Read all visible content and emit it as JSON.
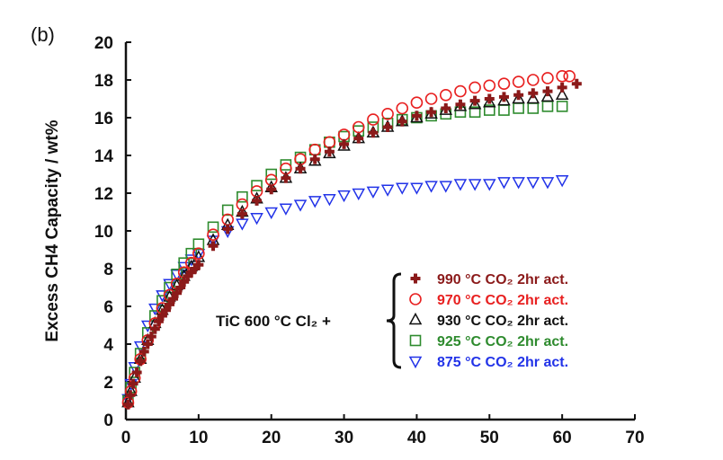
{
  "panel_label": "(b)",
  "chart_data": {
    "type": "scatter",
    "title": "",
    "xlabel": "",
    "ylabel": "Excess CH4 Capacity / wt%",
    "xlim": [
      0,
      70
    ],
    "ylim": [
      0,
      20
    ],
    "xticks": [
      "0",
      "10",
      "20",
      "30",
      "40",
      "50",
      "60",
      "70"
    ],
    "yticks": [
      "0",
      "2",
      "4",
      "6",
      "8",
      "10",
      "12",
      "14",
      "16",
      "18",
      "20"
    ],
    "grid": false,
    "legend_placement": "right",
    "legend_prefix": "TiC 600 °C Cl₂ +",
    "series": [
      {
        "name": "990 °C CO₂ 2hr act.",
        "marker": "cross",
        "color": "#8B1A1A",
        "points": [
          [
            0.3,
            0.8
          ],
          [
            0.6,
            1.3
          ],
          [
            1,
            1.9
          ],
          [
            1.5,
            2.5
          ],
          [
            2,
            3.1
          ],
          [
            2.5,
            3.6
          ],
          [
            3,
            4
          ],
          [
            3.5,
            4.4
          ],
          [
            4,
            4.8
          ],
          [
            4.5,
            5.2
          ],
          [
            5,
            5.5
          ],
          [
            5.5,
            5.8
          ],
          [
            6,
            6.1
          ],
          [
            6.5,
            6.4
          ],
          [
            7,
            6.7
          ],
          [
            7.5,
            7
          ],
          [
            8,
            7.3
          ],
          [
            8.5,
            7.6
          ],
          [
            9,
            7.8
          ],
          [
            9.5,
            8
          ],
          [
            10,
            8.2
          ],
          [
            12,
            9.2
          ],
          [
            14,
            10.1
          ],
          [
            16,
            10.9
          ],
          [
            18,
            11.6
          ],
          [
            20,
            12.2
          ],
          [
            22,
            12.8
          ],
          [
            24,
            13.3
          ],
          [
            26,
            13.8
          ],
          [
            28,
            14.2
          ],
          [
            30,
            14.6
          ],
          [
            32,
            14.9
          ],
          [
            34,
            15.2
          ],
          [
            36,
            15.5
          ],
          [
            38,
            15.8
          ],
          [
            40,
            16.1
          ],
          [
            42,
            16.3
          ],
          [
            44,
            16.5
          ],
          [
            46,
            16.7
          ],
          [
            48,
            16.9
          ],
          [
            50,
            17
          ],
          [
            52,
            17.1
          ],
          [
            54,
            17.2
          ],
          [
            56,
            17.3
          ],
          [
            58,
            17.4
          ],
          [
            60,
            17.6
          ],
          [
            62,
            17.8
          ]
        ]
      },
      {
        "name": "970 °C CO₂ 2hr act.",
        "marker": "circle",
        "color": "#E82020",
        "points": [
          [
            0.3,
            0.9
          ],
          [
            0.7,
            1.5
          ],
          [
            1.2,
            2.2
          ],
          [
            2,
            3.2
          ],
          [
            3,
            4.2
          ],
          [
            4,
            5.1
          ],
          [
            5,
            5.9
          ],
          [
            6,
            6.6
          ],
          [
            7,
            7.2
          ],
          [
            8,
            7.8
          ],
          [
            9,
            8.3
          ],
          [
            10,
            8.8
          ],
          [
            12,
            9.8
          ],
          [
            14,
            10.6
          ],
          [
            16,
            11.4
          ],
          [
            18,
            12.1
          ],
          [
            20,
            12.7
          ],
          [
            22,
            13.3
          ],
          [
            24,
            13.8
          ],
          [
            26,
            14.3
          ],
          [
            28,
            14.7
          ],
          [
            30,
            15.1
          ],
          [
            32,
            15.5
          ],
          [
            34,
            15.9
          ],
          [
            36,
            16.2
          ],
          [
            38,
            16.5
          ],
          [
            40,
            16.8
          ],
          [
            42,
            17
          ],
          [
            44,
            17.2
          ],
          [
            46,
            17.4
          ],
          [
            48,
            17.6
          ],
          [
            50,
            17.7
          ],
          [
            52,
            17.8
          ],
          [
            54,
            17.9
          ],
          [
            56,
            18
          ],
          [
            58,
            18.1
          ],
          [
            60,
            18.2
          ],
          [
            61,
            18.2
          ]
        ]
      },
      {
        "name": "930 °C CO₂ 2hr act.",
        "marker": "triangle-up",
        "color": "#111111",
        "points": [
          [
            0.3,
            0.9
          ],
          [
            0.7,
            1.5
          ],
          [
            1.2,
            2.2
          ],
          [
            2,
            3.2
          ],
          [
            3,
            4.2
          ],
          [
            4,
            5.1
          ],
          [
            5,
            5.8
          ],
          [
            6,
            6.5
          ],
          [
            7,
            7.1
          ],
          [
            8,
            7.6
          ],
          [
            9,
            8.1
          ],
          [
            10,
            8.6
          ],
          [
            12,
            9.5
          ],
          [
            14,
            10.3
          ],
          [
            16,
            11
          ],
          [
            18,
            11.7
          ],
          [
            20,
            12.3
          ],
          [
            22,
            12.8
          ],
          [
            24,
            13.3
          ],
          [
            26,
            13.7
          ],
          [
            28,
            14.1
          ],
          [
            30,
            14.5
          ],
          [
            32,
            14.9
          ],
          [
            34,
            15.2
          ],
          [
            36,
            15.5
          ],
          [
            38,
            15.8
          ],
          [
            40,
            16
          ],
          [
            42,
            16.2
          ],
          [
            44,
            16.4
          ],
          [
            46,
            16.6
          ],
          [
            48,
            16.7
          ],
          [
            50,
            16.8
          ],
          [
            52,
            16.9
          ],
          [
            54,
            17
          ],
          [
            56,
            17
          ],
          [
            58,
            17.1
          ],
          [
            60,
            17.2
          ]
        ]
      },
      {
        "name": "925 °C CO₂ 2hr act.",
        "marker": "square",
        "color": "#2E8B2E",
        "points": [
          [
            0.3,
            1
          ],
          [
            0.7,
            1.7
          ],
          [
            1.2,
            2.5
          ],
          [
            2,
            3.5
          ],
          [
            3,
            4.6
          ],
          [
            4,
            5.5
          ],
          [
            5,
            6.3
          ],
          [
            6,
            7
          ],
          [
            7,
            7.7
          ],
          [
            8,
            8.3
          ],
          [
            9,
            8.8
          ],
          [
            10,
            9.3
          ],
          [
            12,
            10.2
          ],
          [
            14,
            11.1
          ],
          [
            16,
            11.8
          ],
          [
            18,
            12.4
          ],
          [
            20,
            13
          ],
          [
            22,
            13.5
          ],
          [
            24,
            13.9
          ],
          [
            26,
            14.3
          ],
          [
            28,
            14.7
          ],
          [
            30,
            15
          ],
          [
            32,
            15.3
          ],
          [
            34,
            15.5
          ],
          [
            36,
            15.7
          ],
          [
            38,
            15.9
          ],
          [
            40,
            16
          ],
          [
            42,
            16.1
          ],
          [
            44,
            16.2
          ],
          [
            46,
            16.3
          ],
          [
            48,
            16.3
          ],
          [
            50,
            16.4
          ],
          [
            52,
            16.4
          ],
          [
            54,
            16.5
          ],
          [
            56,
            16.5
          ],
          [
            58,
            16.6
          ],
          [
            60,
            16.6
          ]
        ]
      },
      {
        "name": "875 °C CO₂ 2hr act.",
        "marker": "triangle-down",
        "color": "#2233E8",
        "points": [
          [
            0.3,
            1.1
          ],
          [
            0.7,
            1.9
          ],
          [
            1.2,
            2.8
          ],
          [
            2,
            3.9
          ],
          [
            3,
            5
          ],
          [
            4,
            5.9
          ],
          [
            5,
            6.6
          ],
          [
            6,
            7.2
          ],
          [
            7,
            7.7
          ],
          [
            8,
            8.1
          ],
          [
            9,
            8.5
          ],
          [
            10,
            8.8
          ],
          [
            12,
            9.5
          ],
          [
            14,
            10
          ],
          [
            16,
            10.4
          ],
          [
            18,
            10.7
          ],
          [
            20,
            11
          ],
          [
            22,
            11.2
          ],
          [
            24,
            11.4
          ],
          [
            26,
            11.6
          ],
          [
            28,
            11.7
          ],
          [
            30,
            11.9
          ],
          [
            32,
            12
          ],
          [
            34,
            12.1
          ],
          [
            36,
            12.2
          ],
          [
            38,
            12.3
          ],
          [
            40,
            12.3
          ],
          [
            42,
            12.4
          ],
          [
            44,
            12.4
          ],
          [
            46,
            12.5
          ],
          [
            48,
            12.5
          ],
          [
            50,
            12.5
          ],
          [
            52,
            12.6
          ],
          [
            54,
            12.6
          ],
          [
            56,
            12.6
          ],
          [
            58,
            12.6
          ],
          [
            60,
            12.7
          ]
        ]
      }
    ]
  }
}
